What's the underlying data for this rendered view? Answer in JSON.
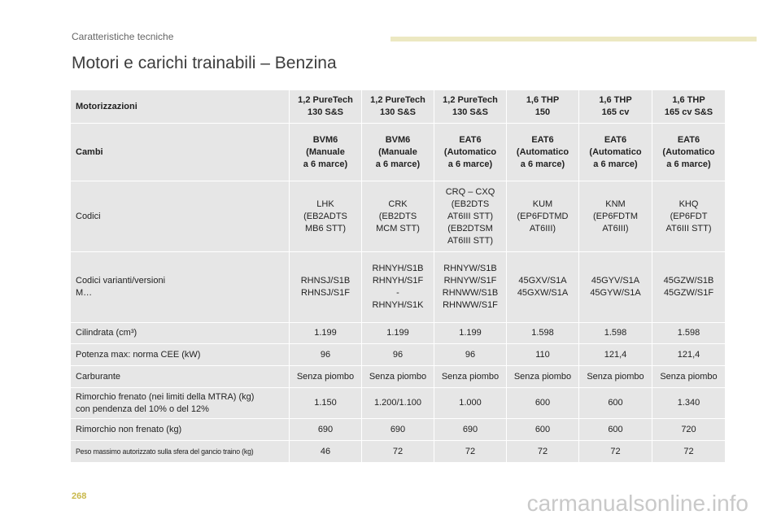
{
  "header": {
    "section": "Caratteristiche tecniche"
  },
  "title": "Motori e carichi trainabili – Benzina",
  "table": {
    "header": {
      "label": "Motorizzazioni",
      "cells": [
        "1,2 PureTech\n130 S&S",
        "1,2 PureTech\n130 S&S",
        "1,2 PureTech\n130 S&S",
        "1,6 THP\n150",
        "1,6 THP\n165 cv",
        "1,6 THP\n165 cv S&S"
      ]
    },
    "cambi": {
      "label": "Cambi",
      "cells": [
        "BVM6\n(Manuale\na 6 marce)",
        "BVM6\n(Manuale\na 6 marce)",
        "EAT6\n(Automatico\na 6 marce)",
        "EAT6\n(Automatico\na 6 marce)",
        "EAT6\n(Automatico\na 6 marce)",
        "EAT6\n(Automatico\na 6 marce)"
      ]
    },
    "codici": {
      "label": "Codici",
      "cells": [
        "LHK\n(EB2ADTS\nMB6 STT)",
        "CRK\n(EB2DTS\nMCM STT)",
        "CRQ – CXQ\n(EB2DTS\nAT6III STT)\n(EB2DTSM\nAT6III STT)",
        "KUM\n(EP6FDTMD\nAT6III)",
        "KNM\n(EP6FDTM\nAT6III)",
        "KHQ\n(EP6FDT\nAT6III STT)"
      ]
    },
    "varianti": {
      "label": "Codici varianti/versioni\nM…",
      "cells": [
        "RHNSJ/S1B\nRHNSJ/S1F",
        "RHNYH/S1B\nRHNYH/S1F\n-\nRHNYH/S1K",
        "RHNYW/S1B\nRHNYW/S1F\nRHNWW/S1B\nRHNWW/S1F",
        "45GXV/S1A\n45GXW/S1A",
        "45GYV/S1A\n45GYW/S1A",
        "45GZW/S1B\n45GZW/S1F"
      ]
    },
    "cilindrata": {
      "label": "Cilindrata (cm³)",
      "cells": [
        "1.199",
        "1.199",
        "1.199",
        "1.598",
        "1.598",
        "1.598"
      ]
    },
    "potenza": {
      "label": "Potenza max: norma CEE (kW)",
      "cells": [
        "96",
        "96",
        "96",
        "110",
        "121,4",
        "121,4"
      ]
    },
    "carburante": {
      "label": "Carburante",
      "cells": [
        "Senza piombo",
        "Senza piombo",
        "Senza piombo",
        "Senza piombo",
        "Senza piombo",
        "Senza piombo"
      ]
    },
    "frenato": {
      "label": "Rimorchio frenato (nei limiti della MTRA) (kg)\ncon pendenza del 10% o del 12%",
      "cells": [
        "1.150",
        "1.200/1.100",
        "1.000",
        "600",
        "600",
        "1.340"
      ]
    },
    "non_frenato": {
      "label": "Rimorchio non frenato (kg)",
      "cells": [
        "690",
        "690",
        "690",
        "600",
        "600",
        "720"
      ]
    },
    "peso_sfera": {
      "label": "Peso massimo autorizzato sulla sfera del gancio traino (kg)",
      "cells": [
        "46",
        "72",
        "72",
        "72",
        "72",
        "72"
      ]
    }
  },
  "page_number": "268",
  "watermark": "carmanualsonline.info"
}
